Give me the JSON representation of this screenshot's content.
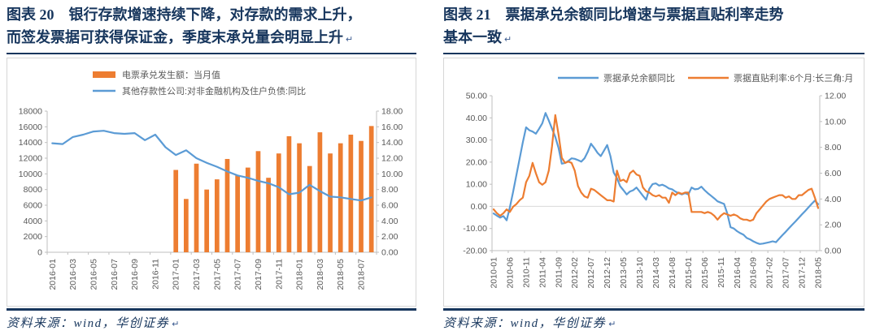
{
  "colors": {
    "navy": "#17365D",
    "blue": "#5B9BD5",
    "orange": "#ED7D31",
    "axis_text": "#595959",
    "axis_line": "#BFBFBF",
    "grid_line": "#D9D9D9",
    "frame_border": "#D6D6D6"
  },
  "figures": [
    {
      "title": "图表 20　银行存款增速持续下降，对存款的需求上升，\n而签发票据可获得保证金，季度末承兑量会明显上升",
      "source": "资料来源：wind，华创证券",
      "paragraph_mark": "↵"
    },
    {
      "title": "图表 21　票据承兑余额同比增速与票据直贴利率走势\n基本一致",
      "source": "资料来源：wind，华创证券",
      "paragraph_mark": "↵"
    }
  ],
  "chart_data": [
    {
      "type": "bar",
      "combo": "bar+line",
      "x_start": "2016-01",
      "x_end": "2018-08",
      "x_tick_step": 2,
      "x_tick_labels": [
        "2016-01",
        "2016-03",
        "2016-05",
        "2016-07",
        "2016-09",
        "2016-11",
        "2017-01",
        "2017-03",
        "2017-05",
        "2017-07",
        "2017-09",
        "2017-11",
        "2018-01",
        "2018-03",
        "2018-05",
        "2018-07"
      ],
      "left_axis": {
        "min": 0,
        "max": 18000,
        "step": 2000,
        "format": "int"
      },
      "right_axis": {
        "min": 0,
        "max": 18,
        "step": 2,
        "format": "fixed2"
      },
      "legend_position": "top-left",
      "grid": false,
      "series": [
        {
          "name": "电票承兑发生额：当月值",
          "type": "bar",
          "axis": "left",
          "color_key": "orange",
          "values": [
            null,
            null,
            null,
            null,
            null,
            null,
            null,
            null,
            null,
            null,
            null,
            null,
            10500,
            6800,
            11300,
            8000,
            9300,
            11900,
            9800,
            10800,
            12900,
            9500,
            12600,
            14800,
            13900,
            11000,
            15300,
            12600,
            13900,
            15000,
            14200,
            16100
          ]
        },
        {
          "name": "其他存款性公司:对非金融机构及住户负债:同比",
          "type": "line",
          "axis": "right",
          "color_key": "blue",
          "values": [
            13.9,
            13.8,
            14.7,
            15.0,
            15.4,
            15.5,
            15.2,
            15.1,
            15.2,
            14.3,
            15.0,
            13.4,
            12.4,
            13.0,
            12.0,
            11.4,
            10.9,
            10.3,
            9.8,
            9.5,
            9.1,
            8.8,
            8.3,
            7.4,
            7.6,
            8.6,
            7.8,
            7.1,
            7.0,
            6.8,
            6.6,
            7.0
          ]
        }
      ]
    },
    {
      "type": "line",
      "x_start": "2010-01",
      "x_end": "2018-05",
      "x_tick_step": 5,
      "x_tick_labels": [
        "2010-01",
        "2010-06",
        "2010-11",
        "2011-04",
        "2011-09",
        "2012-02",
        "2012-07",
        "2012-12",
        "2013-05",
        "2013-10",
        "2014-03",
        "2014-08",
        "2015-01",
        "2015-06",
        "2015-11",
        "2016-04",
        "2016-09",
        "2017-02",
        "2017-07",
        "2017-12",
        "2018-05"
      ],
      "left_axis": {
        "min": -20,
        "max": 50,
        "step": 10,
        "format": "fixed2"
      },
      "right_axis": {
        "min": 0,
        "max": 12,
        "step": 2,
        "format": "fixed2"
      },
      "legend_position": "top-center",
      "grid": false,
      "zero_line": true,
      "series": [
        {
          "name": "票据承兑余额同比",
          "type": "line",
          "axis": "left",
          "color_key": "blue",
          "values": [
            -3.2,
            -4.2,
            -5.1,
            -4.4,
            -6.3,
            -0.5,
            6.5,
            14.0,
            21.5,
            29.0,
            35.7,
            34.4,
            33.8,
            32.8,
            35.1,
            37.5,
            42.2,
            38.8,
            35.1,
            31.4,
            26.4,
            19.3,
            19.6,
            20.5,
            21.7,
            21.5,
            20.9,
            20.2,
            21.7,
            24.6,
            28.3,
            26.4,
            24.2,
            22.7,
            25.2,
            27.7,
            22.7,
            15.3,
            12.8,
            9.1,
            7.3,
            5.4,
            6.7,
            7.3,
            8.5,
            6.7,
            4.8,
            3.0,
            8.0,
            10.1,
            10.4,
            9.4,
            9.8,
            9.1,
            8.1,
            7.7,
            6.7,
            6.0,
            5.4,
            6.0,
            5.4,
            8.5,
            7.7,
            7.9,
            8.9,
            7.3,
            6.0,
            4.8,
            3.6,
            2.3,
            1.7,
            1.1,
            -3.2,
            -9.4,
            -10.0,
            -11.2,
            -12.1,
            -12.8,
            -14.3,
            -14.9,
            -15.8,
            -16.5,
            -17.0,
            -16.8,
            -16.5,
            -16.2,
            -15.8,
            -16.2,
            -14.6,
            -13.0,
            -11.5,
            -9.9,
            -8.3,
            -6.8,
            -5.2,
            -3.6,
            -2.1,
            -0.5,
            1.1,
            2.6,
            1.0
          ]
        },
        {
          "name": "票据直贴利率:6个月:长三角:月",
          "type": "line",
          "axis": "right",
          "color_key": "orange",
          "values": [
            3.2,
            2.9,
            2.7,
            2.9,
            3.2,
            3.0,
            3.4,
            3.6,
            3.9,
            4.1,
            5.3,
            5.8,
            6.8,
            6.0,
            5.3,
            5.1,
            5.3,
            6.2,
            8.1,
            10.5,
            9.0,
            7.2,
            6.8,
            6.9,
            6.8,
            6.2,
            5.0,
            4.5,
            4.2,
            4.1,
            4.8,
            4.7,
            4.5,
            4.3,
            4.1,
            3.9,
            3.9,
            3.8,
            6.2,
            5.4,
            5.5,
            5.3,
            6.0,
            6.2,
            5.9,
            5.8,
            4.9,
            4.6,
            4.5,
            4.3,
            4.2,
            4.3,
            4.1,
            4.1,
            3.7,
            4.5,
            4.3,
            4.5,
            4.4,
            4.5,
            4.5,
            3.0,
            3.0,
            3.0,
            3.0,
            2.9,
            3.0,
            2.9,
            2.7,
            2.4,
            2.7,
            2.9,
            2.8,
            2.7,
            2.8,
            2.7,
            2.5,
            2.4,
            2.4,
            2.3,
            2.4,
            2.9,
            3.2,
            3.5,
            3.8,
            4.0,
            4.1,
            4.2,
            4.3,
            4.3,
            4.1,
            4.2,
            4.0,
            4.0,
            4.3,
            4.3,
            4.5,
            4.7,
            4.8,
            4.1,
            3.3
          ]
        }
      ]
    }
  ]
}
